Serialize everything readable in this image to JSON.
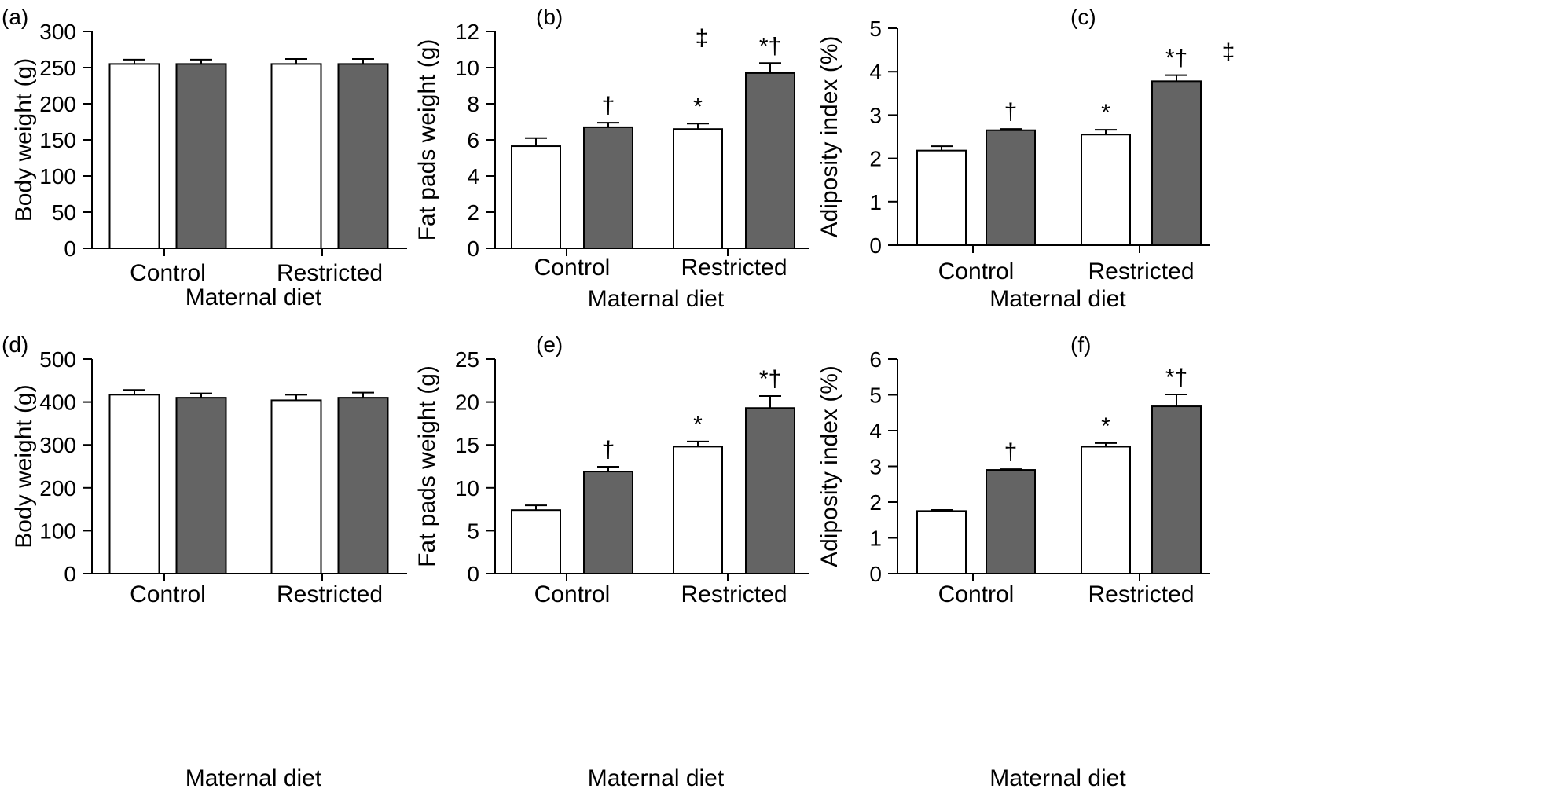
{
  "colors": {
    "white_bar": "#ffffff",
    "dark_bar": "#646464",
    "stroke": "#000000"
  },
  "chart_data": [
    {
      "panel": "(a)",
      "type": "bar",
      "ylabel": "Body weight (g)",
      "xlabel": "Maternal diet",
      "categories": [
        "Control",
        "Restricted"
      ],
      "ylim": [
        0,
        300
      ],
      "yticks": [
        "0",
        "50",
        "100",
        "150",
        "200",
        "250",
        "300"
      ],
      "series": [
        {
          "name": "open",
          "values": [
            255,
            255
          ],
          "errors": [
            6,
            7
          ]
        },
        {
          "name": "filled",
          "values": [
            255,
            255
          ],
          "errors": [
            6,
            7
          ]
        }
      ],
      "annotations": [
        [
          "",
          ""
        ],
        [
          "",
          ""
        ]
      ],
      "header_mark": ""
    },
    {
      "panel": "(b)",
      "type": "bar",
      "ylabel": "Fat pads weight (g)",
      "xlabel": "Maternal diet",
      "categories": [
        "Control",
        "Restricted"
      ],
      "ylim": [
        0,
        12
      ],
      "yticks": [
        "0",
        "2",
        "4",
        "6",
        "8",
        "10",
        "12"
      ],
      "series": [
        {
          "name": "open",
          "values": [
            5.65,
            6.6
          ],
          "errors": [
            0.45,
            0.3
          ]
        },
        {
          "name": "filled",
          "values": [
            6.7,
            9.7
          ],
          "errors": [
            0.25,
            0.55
          ]
        }
      ],
      "annotations": [
        [
          "",
          "*"
        ],
        [
          "†",
          "*†"
        ]
      ],
      "header_mark": "‡"
    },
    {
      "panel": "(c)",
      "type": "bar",
      "ylabel": "Adiposity index (%)",
      "xlabel": "Maternal diet",
      "categories": [
        "Control",
        "Restricted"
      ],
      "ylim": [
        0,
        5
      ],
      "yticks": [
        "0",
        "1",
        "2",
        "3",
        "4",
        "5"
      ],
      "series": [
        {
          "name": "open",
          "values": [
            2.18,
            2.55
          ],
          "errors": [
            0.1,
            0.11
          ]
        },
        {
          "name": "filled",
          "values": [
            2.65,
            3.78
          ],
          "errors": [
            0.03,
            0.14
          ]
        }
      ],
      "annotations": [
        [
          "",
          "*"
        ],
        [
          "†",
          "*†"
        ]
      ],
      "header_mark": "‡"
    },
    {
      "panel": "(d)",
      "type": "bar",
      "ylabel": "Body weight (g)",
      "xlabel": "Maternal diet",
      "categories": [
        "Control",
        "Restricted"
      ],
      "ylim": [
        0,
        500
      ],
      "yticks": [
        "0",
        "100",
        "200",
        "300",
        "400",
        "500"
      ],
      "series": [
        {
          "name": "open",
          "values": [
            417,
            404
          ],
          "errors": [
            11,
            13
          ]
        },
        {
          "name": "filled",
          "values": [
            410,
            410
          ],
          "errors": [
            10,
            12
          ]
        }
      ],
      "annotations": [
        [
          "",
          ""
        ],
        [
          "",
          ""
        ]
      ],
      "header_mark": ""
    },
    {
      "panel": "(e)",
      "type": "bar",
      "ylabel": "Fat pads weight (g)",
      "xlabel": "Maternal diet",
      "categories": [
        "Control",
        "Restricted"
      ],
      "ylim": [
        0,
        25
      ],
      "yticks": [
        "0",
        "5",
        "10",
        "15",
        "20",
        "25"
      ],
      "series": [
        {
          "name": "open",
          "values": [
            7.4,
            14.8
          ],
          "errors": [
            0.55,
            0.6
          ]
        },
        {
          "name": "filled",
          "values": [
            11.9,
            19.3
          ],
          "errors": [
            0.55,
            1.4
          ]
        }
      ],
      "annotations": [
        [
          "",
          "*"
        ],
        [
          "†",
          "*†"
        ]
      ],
      "header_mark": ""
    },
    {
      "panel": "(f)",
      "type": "bar",
      "ylabel": "Adiposity index (%)",
      "xlabel": "Maternal diet",
      "categories": [
        "Control",
        "Restricted"
      ],
      "ylim": [
        0,
        6
      ],
      "yticks": [
        "0",
        "1",
        "2",
        "3",
        "4",
        "5",
        "6"
      ],
      "series": [
        {
          "name": "open",
          "values": [
            1.75,
            3.55
          ],
          "errors": [
            0.03,
            0.1
          ]
        },
        {
          "name": "filled",
          "values": [
            2.9,
            4.68
          ],
          "errors": [
            0.02,
            0.33
          ]
        }
      ],
      "annotations": [
        [
          "",
          "*"
        ],
        [
          "†",
          "*†"
        ]
      ],
      "header_mark": ""
    }
  ]
}
